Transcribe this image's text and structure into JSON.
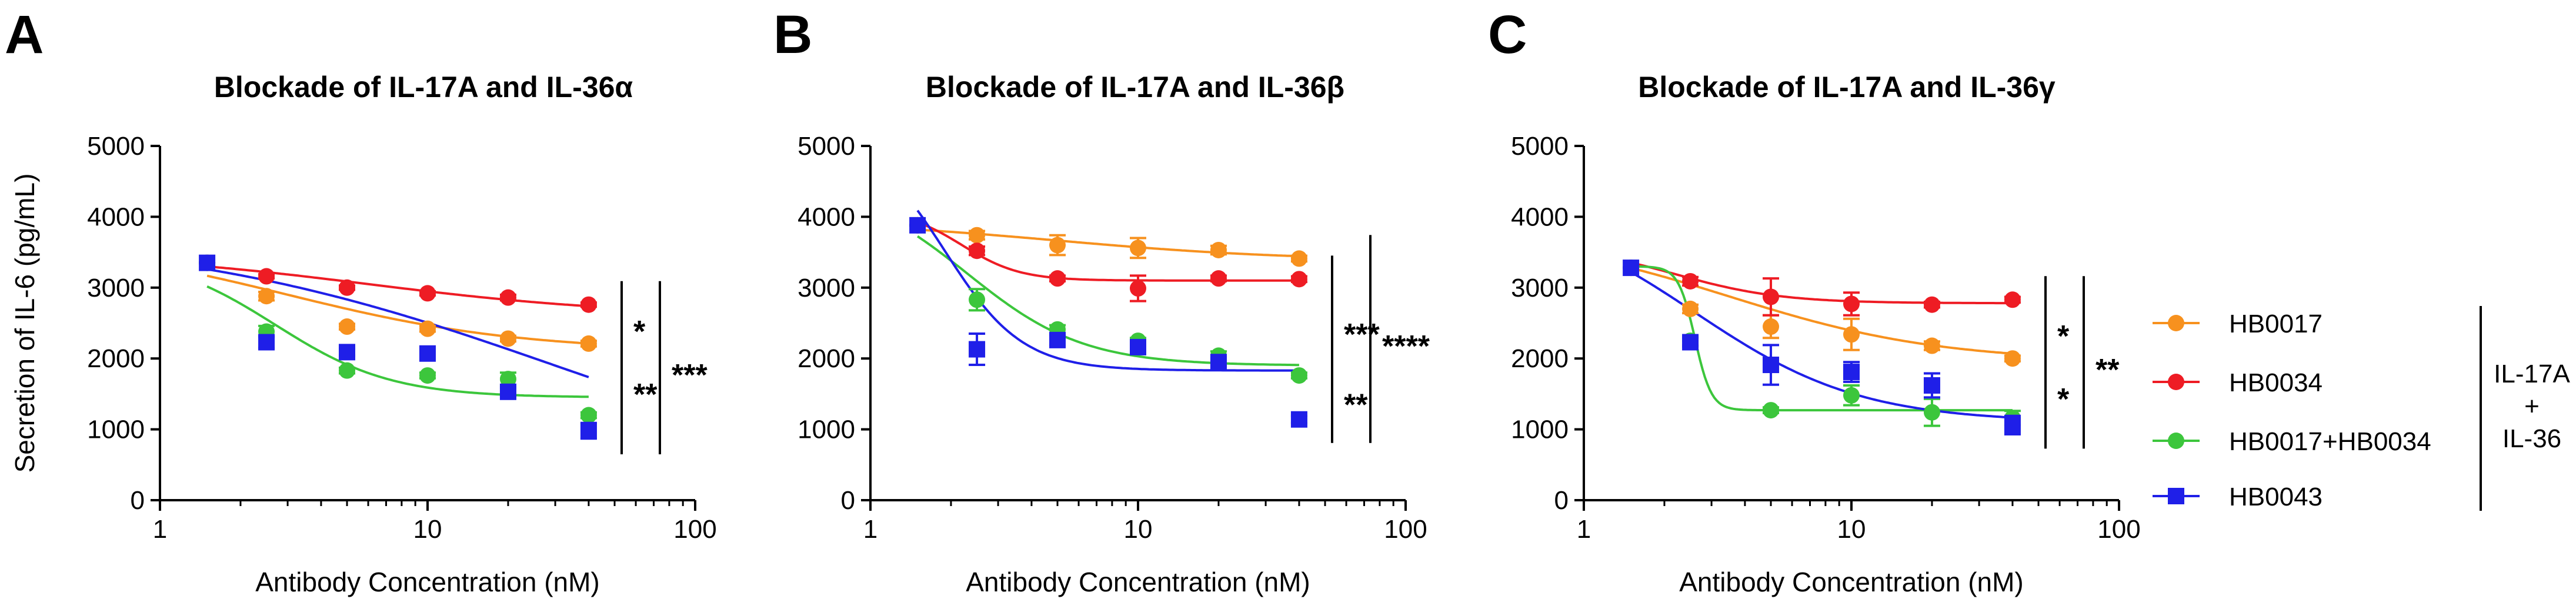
{
  "colors": {
    "HB0017": "#f7911e",
    "HB0034": "#ee1c24",
    "HB0017+HB0034": "#3cc63c",
    "HB0043": "#1f1fe8"
  },
  "legend": {
    "items": [
      {
        "label": "HB0017",
        "marker": "circle"
      },
      {
        "label": "HB0034",
        "marker": "circle"
      },
      {
        "label": "HB0017+HB0034",
        "marker": "circle"
      },
      {
        "label": "HB0043",
        "marker": "square"
      }
    ],
    "group_line1": "IL-17A",
    "group_line2": "+",
    "group_line3": "IL-36"
  },
  "chart_data": [
    {
      "type": "scatter",
      "panel": "A",
      "title": "Blockade of IL-17A and IL-36α",
      "xlabel": "Antibody Concentration (nM)",
      "ylabel": "Secretion of IL-6 (pg/mL)",
      "xscale": "log",
      "xlim": [
        1,
        100
      ],
      "ylim": [
        0,
        5000
      ],
      "xticks": [
        1,
        10,
        100
      ],
      "yticks": [
        0,
        1000,
        2000,
        3000,
        4000,
        5000
      ],
      "x": [
        1.5,
        2.5,
        5,
        10,
        20,
        40
      ],
      "series": [
        {
          "name": "HB0017",
          "values": [
            3350,
            2880,
            2450,
            2420,
            2280,
            2210
          ],
          "errors": [
            0,
            60,
            40,
            40,
            40,
            40
          ],
          "fit": {
            "top": 3700,
            "bottom": 2100,
            "ec50": 3.0,
            "hill": 1.0
          }
        },
        {
          "name": "HB0034",
          "values": [
            3350,
            3160,
            3000,
            2920,
            2860,
            2760
          ],
          "errors": [
            0,
            30,
            30,
            30,
            40,
            30
          ],
          "fit": {
            "top": 3500,
            "bottom": 2600,
            "ec50": 6.0,
            "hill": 0.9
          }
        },
        {
          "name": "HB0017+HB0034",
          "values": [
            3350,
            2380,
            1830,
            1760,
            1710,
            1200
          ],
          "errors": [
            0,
            80,
            40,
            40,
            90,
            40
          ],
          "fit": {
            "top": 3500,
            "bottom": 1450,
            "ec50": 2.7,
            "hill": 2.0
          }
        },
        {
          "name": "HB0043",
          "values": [
            3350,
            2230,
            2090,
            2070,
            1530,
            980
          ],
          "errors": [
            0,
            80,
            50,
            50,
            60,
            110
          ],
          "fit": {
            "top": 3800,
            "bottom": 0,
            "ec50": 30,
            "hill": 0.6
          }
        }
      ],
      "significance": [
        {
          "label": "*",
          "between": [
            "HB0034",
            "HB0017"
          ]
        },
        {
          "label": "**",
          "between": [
            "HB0017",
            "HB0043"
          ]
        },
        {
          "label": "***",
          "between": [
            "HB0034",
            "HB0043"
          ]
        }
      ]
    },
    {
      "type": "scatter",
      "panel": "B",
      "title": "Blockade of IL-17A and IL-36β",
      "xlabel": "Antibody Concentration (nM)",
      "ylabel": "",
      "xscale": "log",
      "xlim": [
        1,
        100
      ],
      "ylim": [
        0,
        5000
      ],
      "xticks": [
        1,
        10,
        100
      ],
      "yticks": [
        0,
        1000,
        2000,
        3000,
        4000,
        5000
      ],
      "x": [
        1.5,
        2.5,
        5,
        10,
        20,
        40
      ],
      "series": [
        {
          "name": "HB0017",
          "values": [
            3880,
            3740,
            3600,
            3560,
            3530,
            3410
          ],
          "errors": [
            0,
            60,
            140,
            140,
            60,
            40
          ],
          "fit": {
            "top": 3950,
            "bottom": 3380,
            "ec50": 5.0,
            "hill": 1.0
          }
        },
        {
          "name": "HB0034",
          "values": [
            3880,
            3520,
            3130,
            2990,
            3130,
            3120
          ],
          "errors": [
            0,
            60,
            40,
            180,
            40,
            40
          ],
          "fit": {
            "top": 4100,
            "bottom": 3100,
            "ec50": 2.2,
            "hill": 4.0
          }
        },
        {
          "name": "HB0017+HB0034",
          "values": [
            3880,
            2830,
            2410,
            2250,
            2040,
            1760
          ],
          "errors": [
            0,
            150,
            60,
            40,
            60,
            40
          ],
          "fit": {
            "top": 4500,
            "bottom": 1900,
            "ec50": 2.3,
            "hill": 2.0
          }
        },
        {
          "name": "HB0043",
          "values": [
            3880,
            2130,
            2260,
            2160,
            1950,
            1140
          ],
          "errors": [
            0,
            220,
            70,
            70,
            60,
            50
          ],
          "fit": {
            "top": 5200,
            "bottom": 1830,
            "ec50": 1.9,
            "hill": 3.0
          }
        }
      ],
      "significance": [
        {
          "label": "***",
          "between": [
            "HB0034",
            "HB0017+HB0034"
          ]
        },
        {
          "label": "**",
          "between": [
            "HB0017+HB0034",
            "HB0043"
          ]
        },
        {
          "label": "****",
          "between": [
            "HB0017",
            "HB0043"
          ]
        }
      ]
    },
    {
      "type": "scatter",
      "panel": "C",
      "title": "Blockade of IL-17A and IL-36γ",
      "xlabel": "Antibody Concentration (nM)",
      "ylabel": "",
      "xscale": "log",
      "xlim": [
        1,
        100
      ],
      "ylim": [
        0,
        5000
      ],
      "xticks": [
        1,
        10,
        100
      ],
      "yticks": [
        0,
        1000,
        2000,
        3000,
        4000,
        5000
      ],
      "x": [
        1.5,
        2.5,
        5,
        10,
        20,
        40
      ],
      "series": [
        {
          "name": "HB0017",
          "values": [
            3280,
            2700,
            2450,
            2340,
            2180,
            2000
          ],
          "errors": [
            0,
            60,
            160,
            220,
            60,
            40
          ],
          "fit": {
            "top": 3800,
            "bottom": 1950,
            "ec50": 3.5,
            "hill": 1.1
          }
        },
        {
          "name": "HB0034",
          "values": [
            3280,
            3090,
            2870,
            2770,
            2760,
            2830
          ],
          "errors": [
            0,
            60,
            260,
            160,
            40,
            40
          ],
          "fit": {
            "top": 3600,
            "bottom": 2780,
            "ec50": 2.2,
            "hill": 2.2
          }
        },
        {
          "name": "HB0017+HB0034",
          "values": [
            3280,
            2250,
            1270,
            1480,
            1240,
            1160
          ],
          "errors": [
            0,
            60,
            40,
            140,
            190,
            100
          ],
          "fit": {
            "top": 3300,
            "bottom": 1270,
            "ec50": 2.6,
            "hill": 14
          }
        },
        {
          "name": "HB0043",
          "values": [
            3280,
            2230,
            1910,
            1810,
            1620,
            1060
          ],
          "errors": [
            0,
            60,
            280,
            140,
            170,
            130
          ],
          "fit": {
            "top": 4200,
            "bottom": 1100,
            "ec50": 2.6,
            "hill": 1.4
          }
        }
      ],
      "significance": [
        {
          "label": "*",
          "between": [
            "HB0034",
            "HB0017"
          ]
        },
        {
          "label": "*",
          "between": [
            "HB0017",
            "HB0043"
          ]
        },
        {
          "label": "**",
          "between": [
            "HB0034",
            "HB0043"
          ]
        }
      ]
    }
  ]
}
